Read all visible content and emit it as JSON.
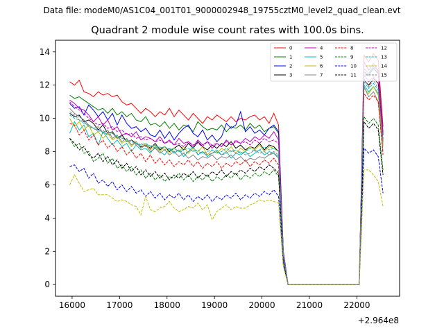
{
  "figure": {
    "file_label": "Data file: modeM0/AS1C04_001T01_9000002948_19755cztM0_level2_quad_clean.evt",
    "offset_label": "+2.964e8"
  },
  "chart_data": {
    "type": "line",
    "title": "Quadrant 2 module wise count rates with 100.0s bins.",
    "xlabel": "",
    "ylabel": "",
    "x_offset": 296400000,
    "xlim": [
      15650,
      22900
    ],
    "ylim": [
      -0.7,
      14.7
    ],
    "xticks": [
      16000,
      17000,
      18000,
      19000,
      20000,
      21000,
      22000
    ],
    "yticks": [
      0,
      2,
      4,
      6,
      8,
      10,
      12,
      14
    ],
    "legend_loc": "upper right",
    "x": [
      15950,
      16050,
      16150,
      16250,
      16350,
      16450,
      16550,
      16650,
      16750,
      16850,
      16950,
      17050,
      17150,
      17250,
      17350,
      17450,
      17550,
      17650,
      17750,
      17850,
      17950,
      18050,
      18150,
      18250,
      18350,
      18450,
      18550,
      18650,
      18750,
      18850,
      18950,
      19050,
      19150,
      19250,
      19350,
      19450,
      19550,
      19650,
      19750,
      19850,
      19950,
      20050,
      20150,
      20250,
      20350,
      20450,
      20550,
      20650,
      20750,
      20850,
      20950,
      21050,
      21150,
      21250,
      21350,
      21450,
      21550,
      21650,
      21750,
      21850,
      21950,
      22050,
      22150,
      22250,
      22350,
      22450,
      22550
    ],
    "series": [
      {
        "name": "0",
        "color": "#ff0000",
        "dashed": false,
        "values": [
          12.2,
          12.0,
          12.3,
          11.6,
          11.5,
          11.3,
          11.6,
          11.4,
          11.5,
          11.3,
          11.4,
          11.0,
          10.8,
          10.9,
          10.6,
          10.3,
          10.6,
          10.4,
          10.1,
          10.4,
          10.2,
          10.6,
          10.1,
          10.5,
          10.2,
          9.9,
          10.3,
          10.0,
          9.7,
          10.1,
          9.9,
          10.2,
          10.0,
          9.8,
          10.1,
          9.8,
          10.0,
          9.9,
          10.1,
          10.2,
          9.9,
          10.1,
          9.7,
          10.3,
          9.6,
          2.0,
          0,
          0,
          0,
          0,
          0,
          0,
          0,
          0,
          0,
          0,
          0,
          0,
          0,
          0,
          0,
          0,
          13.8,
          13.4,
          13.9,
          13.5,
          9.5
        ]
      },
      {
        "name": "1",
        "color": "#008000",
        "dashed": false,
        "values": [
          11.4,
          11.2,
          11.3,
          11.1,
          10.9,
          10.7,
          10.5,
          10.6,
          10.3,
          10.6,
          10.2,
          10.4,
          10.1,
          10.3,
          9.9,
          9.8,
          10.1,
          9.6,
          9.7,
          9.5,
          9.8,
          9.4,
          9.7,
          9.3,
          9.6,
          9.5,
          9.2,
          9.8,
          9.5,
          9.3,
          9.4,
          9.3,
          9.6,
          9.2,
          9.5,
          9.4,
          9.6,
          9.3,
          9.7,
          9.4,
          9.6,
          9.2,
          9.4,
          9.5,
          9.1,
          1.9,
          0,
          0,
          0,
          0,
          0,
          0,
          0,
          0,
          0,
          0,
          0,
          0,
          0,
          0,
          0,
          0,
          13.0,
          12.7,
          13.1,
          12.9,
          9.2
        ]
      },
      {
        "name": "2",
        "color": "#0000ff",
        "dashed": false,
        "values": [
          10.9,
          10.6,
          10.7,
          10.2,
          10.8,
          10.5,
          10.1,
          10.4,
          9.9,
          10.3,
          9.6,
          10.2,
          9.7,
          9.4,
          9.5,
          9.2,
          9.4,
          9.0,
          8.9,
          9.3,
          8.8,
          9.2,
          8.7,
          9.1,
          9.4,
          9.6,
          9.1,
          8.9,
          9.3,
          8.7,
          9.0,
          8.6,
          8.9,
          9.7,
          9.4,
          9.6,
          10.4,
          9.2,
          9.5,
          9.1,
          9.3,
          9.0,
          9.4,
          9.6,
          9.2,
          2.0,
          0,
          0,
          0,
          0,
          0,
          0,
          0,
          0,
          0,
          0,
          0,
          0,
          0,
          0,
          0,
          0,
          12.8,
          12.6,
          13.0,
          12.7,
          9.0
        ]
      },
      {
        "name": "3",
        "color": "#000000",
        "dashed": false,
        "values": [
          10.3,
          10.1,
          10.2,
          9.8,
          9.9,
          9.7,
          9.3,
          9.6,
          9.1,
          9.2,
          8.8,
          9.0,
          8.6,
          8.7,
          8.5,
          8.3,
          8.4,
          8.2,
          8.5,
          8.1,
          8.3,
          8.0,
          8.2,
          8.4,
          8.1,
          8.5,
          8.2,
          8.6,
          8.3,
          8.1,
          8.4,
          8.2,
          8.5,
          8.3,
          8.6,
          8.2,
          8.4,
          8.1,
          8.3,
          8.2,
          8.5,
          8.1,
          8.4,
          8.3,
          8.0,
          1.8,
          0,
          0,
          0,
          0,
          0,
          0,
          0,
          0,
          0,
          0,
          0,
          0,
          0,
          0,
          0,
          0,
          12.3,
          12.0,
          12.4,
          12.1,
          8.6
        ]
      },
      {
        "name": "4",
        "color": "#bf00bf",
        "dashed": false,
        "values": [
          11.1,
          10.9,
          10.6,
          10.5,
          10.2,
          9.8,
          10.1,
          9.6,
          9.9,
          9.3,
          9.5,
          9.0,
          9.1,
          8.9,
          9.2,
          8.7,
          8.9,
          8.8,
          8.6,
          8.9,
          8.5,
          8.7,
          8.4,
          8.8,
          8.5,
          8.6,
          8.3,
          8.7,
          8.4,
          8.6,
          8.2,
          8.5,
          8.3,
          8.7,
          8.4,
          8.6,
          8.5,
          8.8,
          8.6,
          8.9,
          8.7,
          9.0,
          8.8,
          9.2,
          8.7,
          1.9,
          0,
          0,
          0,
          0,
          0,
          0,
          0,
          0,
          0,
          0,
          0,
          0,
          0,
          0,
          0,
          0,
          13.4,
          12.9,
          13.3,
          12.8,
          9.1
        ]
      },
      {
        "name": "5",
        "color": "#00bfbf",
        "dashed": false,
        "values": [
          9.1,
          9.8,
          9.3,
          9.6,
          8.9,
          9.1,
          8.4,
          9.2,
          8.8,
          8.4,
          8.7,
          8.3,
          8.5,
          8.0,
          8.4,
          8.1,
          8.2,
          7.9,
          8.3,
          8.0,
          7.8,
          8.2,
          7.9,
          8.1,
          7.7,
          8.0,
          8.3,
          7.8,
          8.0,
          7.7,
          7.9,
          8.1,
          7.8,
          8.0,
          7.6,
          7.9,
          7.8,
          8.0,
          7.7,
          7.9,
          8.1,
          7.8,
          8.0,
          7.9,
          7.7,
          1.8,
          0,
          0,
          0,
          0,
          0,
          0,
          0,
          0,
          0,
          0,
          0,
          0,
          0,
          0,
          0,
          0,
          12.0,
          11.6,
          11.9,
          11.5,
          8.4
        ]
      },
      {
        "name": "6",
        "color": "#bfbf00",
        "dashed": false,
        "values": [
          10.0,
          9.5,
          9.8,
          9.3,
          9.6,
          9.0,
          9.2,
          8.8,
          9.1,
          8.7,
          8.9,
          8.5,
          8.7,
          8.3,
          8.6,
          8.2,
          8.5,
          8.1,
          8.4,
          8.0,
          8.3,
          7.9,
          8.2,
          8.0,
          8.3,
          7.9,
          8.2,
          8.0,
          8.3,
          7.8,
          8.1,
          7.9,
          8.2,
          8.0,
          8.3,
          7.9,
          8.2,
          8.0,
          8.3,
          8.1,
          8.4,
          8.0,
          8.3,
          8.2,
          8.0,
          1.8,
          0,
          0,
          0,
          0,
          0,
          0,
          0,
          0,
          0,
          0,
          0,
          0,
          0,
          0,
          0,
          0,
          11.8,
          11.5,
          11.9,
          11.4,
          8.3
        ]
      },
      {
        "name": "7",
        "color": "#808080",
        "dashed": false,
        "values": [
          10.6,
          10.3,
          10.1,
          9.9,
          9.6,
          9.4,
          9.5,
          9.1,
          9.3,
          8.8,
          9.0,
          8.6,
          8.8,
          8.4,
          8.6,
          8.2,
          8.4,
          8.0,
          8.2,
          7.9,
          8.1,
          7.8,
          8.0,
          7.7,
          7.9,
          7.6,
          7.8,
          7.5,
          7.7,
          7.6,
          7.8,
          7.5,
          7.7,
          7.6,
          7.8,
          7.5,
          7.7,
          7.4,
          7.6,
          7.5,
          7.7,
          7.6,
          7.8,
          7.9,
          7.6,
          1.7,
          0,
          0,
          0,
          0,
          0,
          0,
          0,
          0,
          0,
          0,
          0,
          0,
          0,
          0,
          0,
          0,
          11.9,
          11.3,
          11.6,
          11.0,
          8.0
        ]
      },
      {
        "name": "8",
        "color": "#ff0000",
        "dashed": true,
        "values": [
          9.7,
          9.6,
          9.0,
          9.3,
          8.7,
          9.0,
          8.4,
          8.7,
          8.2,
          8.5,
          8.0,
          8.3,
          7.8,
          8.1,
          7.6,
          7.9,
          7.4,
          7.8,
          7.3,
          7.6,
          7.2,
          7.5,
          7.1,
          7.4,
          7.2,
          7.5,
          7.1,
          7.4,
          7.0,
          7.3,
          7.1,
          7.4,
          7.0,
          7.3,
          7.1,
          7.4,
          7.2,
          7.5,
          7.1,
          7.4,
          7.2,
          7.5,
          7.3,
          7.6,
          7.2,
          1.6,
          0,
          0,
          0,
          0,
          0,
          0,
          0,
          0,
          0,
          0,
          0,
          0,
          0,
          0,
          0,
          0,
          11.5,
          11.1,
          11.4,
          11.0,
          7.8
        ]
      },
      {
        "name": "9",
        "color": "#008000",
        "dashed": true,
        "values": [
          8.8,
          8.3,
          8.5,
          7.9,
          8.0,
          7.4,
          7.6,
          7.9,
          7.3,
          7.6,
          7.0,
          7.2,
          6.8,
          7.1,
          6.6,
          6.9,
          6.4,
          6.7,
          6.3,
          6.6,
          6.2,
          6.5,
          6.4,
          6.7,
          6.3,
          6.6,
          6.2,
          6.5,
          6.3,
          6.6,
          6.2,
          6.5,
          6.3,
          6.6,
          6.4,
          6.7,
          6.3,
          6.6,
          6.4,
          6.7,
          6.5,
          6.8,
          6.6,
          6.9,
          6.5,
          1.4,
          0,
          0,
          0,
          0,
          0,
          0,
          0,
          0,
          0,
          0,
          0,
          0,
          0,
          0,
          0,
          0,
          10.1,
          9.7,
          10.0,
          9.6,
          6.9
        ]
      },
      {
        "name": "10",
        "color": "#0000ff",
        "dashed": true,
        "values": [
          7.1,
          7.2,
          6.8,
          7.0,
          6.4,
          6.7,
          6.1,
          6.3,
          5.9,
          6.2,
          5.7,
          6.0,
          5.6,
          5.9,
          5.5,
          5.7,
          5.3,
          5.6,
          5.2,
          5.5,
          5.1,
          5.4,
          5.2,
          5.5,
          5.1,
          5.4,
          5.0,
          5.3,
          5.1,
          5.4,
          5.0,
          5.3,
          5.1,
          5.4,
          5.2,
          5.5,
          5.1,
          5.4,
          5.2,
          5.5,
          5.3,
          5.6,
          5.4,
          5.7,
          5.3,
          1.2,
          0,
          0,
          0,
          0,
          0,
          0,
          0,
          0,
          0,
          0,
          0,
          0,
          0,
          0,
          0,
          0,
          8.2,
          7.9,
          8.1,
          7.7,
          5.5
        ]
      },
      {
        "name": "11",
        "color": "#000000",
        "dashed": true,
        "values": [
          8.8,
          8.5,
          8.1,
          8.3,
          7.8,
          7.6,
          7.9,
          7.4,
          7.7,
          7.2,
          7.5,
          7.0,
          7.3,
          6.8,
          7.1,
          6.6,
          6.9,
          6.5,
          6.8,
          6.4,
          6.7,
          6.3,
          6.6,
          6.4,
          6.7,
          6.5,
          6.8,
          6.4,
          6.7,
          6.5,
          6.8,
          6.6,
          6.9,
          6.5,
          6.8,
          6.6,
          6.9,
          6.7,
          7.0,
          6.8,
          7.1,
          6.9,
          7.2,
          7.0,
          6.7,
          1.5,
          0,
          0,
          0,
          0,
          0,
          0,
          0,
          0,
          0,
          0,
          0,
          0,
          0,
          0,
          0,
          0,
          9.8,
          9.4,
          9.7,
          9.3,
          6.6
        ]
      },
      {
        "name": "12",
        "color": "#bf00bf",
        "dashed": true,
        "values": [
          11.0,
          10.7,
          10.5,
          10.3,
          10.0,
          9.8,
          9.6,
          9.7,
          9.4,
          9.5,
          9.2,
          9.3,
          9.0,
          9.1,
          8.8,
          8.9,
          8.7,
          8.8,
          8.6,
          8.7,
          8.5,
          8.6,
          8.4,
          8.5,
          8.3,
          8.6,
          8.4,
          8.5,
          8.3,
          8.6,
          8.4,
          8.5,
          8.3,
          8.6,
          8.4,
          8.7,
          8.5,
          8.6,
          8.4,
          8.7,
          8.5,
          8.8,
          8.6,
          8.7,
          8.5,
          1.9,
          0,
          0,
          0,
          0,
          0,
          0,
          0,
          0,
          0,
          0,
          0,
          0,
          0,
          0,
          0,
          0,
          12.6,
          12.2,
          12.5,
          12.1,
          8.8
        ]
      },
      {
        "name": "13",
        "color": "#00bfbf",
        "dashed": true,
        "values": [
          10.2,
          10.0,
          9.9,
          9.7,
          9.6,
          9.4,
          9.3,
          9.2,
          9.0,
          9.1,
          8.9,
          8.8,
          8.7,
          8.6,
          8.5,
          8.4,
          8.5,
          8.3,
          8.4,
          8.2,
          8.3,
          8.1,
          8.2,
          8.0,
          8.1,
          8.2,
          8.0,
          8.1,
          7.9,
          8.0,
          8.1,
          7.9,
          8.0,
          8.2,
          8.0,
          8.1,
          7.9,
          8.0,
          8.2,
          8.0,
          8.1,
          8.3,
          8.1,
          8.2,
          8.0,
          1.8,
          0,
          0,
          0,
          0,
          0,
          0,
          0,
          0,
          0,
          0,
          0,
          0,
          0,
          0,
          0,
          0,
          12.2,
          11.8,
          12.1,
          11.7,
          8.5
        ]
      },
      {
        "name": "14",
        "color": "#bfbf00",
        "dashed": true,
        "values": [
          6.0,
          6.6,
          6.1,
          5.6,
          5.7,
          5.8,
          5.4,
          5.4,
          5.4,
          5.2,
          5.0,
          5.1,
          5.0,
          4.8,
          4.7,
          4.2,
          5.3,
          4.5,
          4.4,
          4.6,
          4.7,
          5.0,
          4.6,
          4.4,
          4.5,
          4.7,
          4.6,
          4.9,
          4.5,
          4.8,
          3.9,
          4.4,
          4.6,
          4.8,
          4.5,
          4.7,
          4.6,
          4.6,
          4.8,
          4.9,
          5.1,
          5.0,
          5.1,
          5.0,
          4.9,
          1.1,
          0,
          0,
          0,
          0,
          0,
          0,
          0,
          0,
          0,
          0,
          0,
          0,
          0,
          0,
          0,
          0,
          6.9,
          6.9,
          6.6,
          6.2,
          4.7
        ]
      },
      {
        "name": "15",
        "color": "#808080",
        "dashed": true,
        "values": [
          10.4,
          10.2,
          9.9,
          9.8,
          9.5,
          9.4,
          9.2,
          9.3,
          9.0,
          9.1,
          8.8,
          8.9,
          8.6,
          8.7,
          8.4,
          8.5,
          8.3,
          8.4,
          8.2,
          8.3,
          8.1,
          8.2,
          8.0,
          8.1,
          7.9,
          8.0,
          8.1,
          7.9,
          8.0,
          7.8,
          7.9,
          8.0,
          7.8,
          7.9,
          8.1,
          7.9,
          8.0,
          7.8,
          7.9,
          8.1,
          7.9,
          8.0,
          7.8,
          8.0,
          7.8,
          1.7,
          0,
          0,
          0,
          0,
          0,
          0,
          0,
          0,
          0,
          0,
          0,
          0,
          0,
          0,
          0,
          0,
          12.4,
          11.9,
          12.3,
          11.8,
          8.6
        ]
      }
    ]
  }
}
